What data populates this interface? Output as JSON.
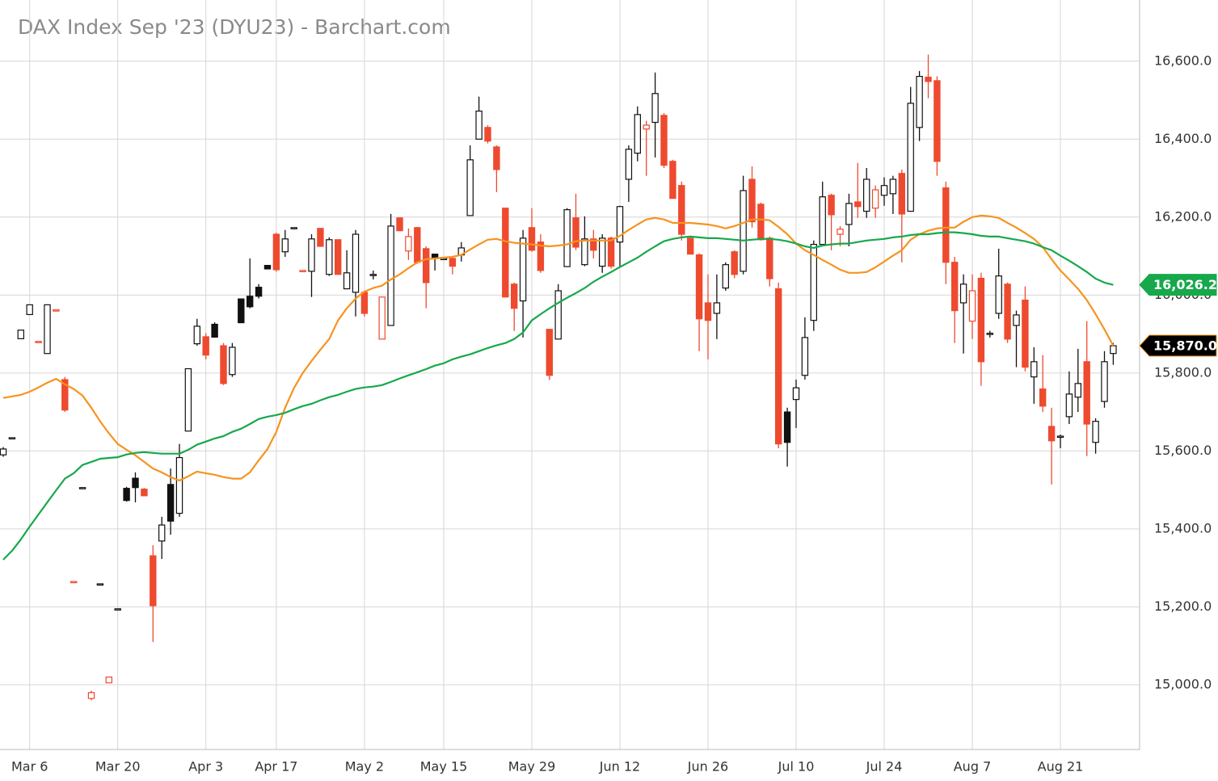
{
  "chart_data": {
    "type": "candlestick",
    "title": "DAX Index Sep '23 (DYU23) - Barchart.com",
    "categories": [
      null,
      null,
      null,
      "Mar 6",
      null,
      null,
      null,
      null,
      null,
      null,
      null,
      null,
      null,
      "Mar 20",
      null,
      null,
      null,
      null,
      null,
      null,
      null,
      null,
      null,
      "Apr 3",
      null,
      null,
      null,
      null,
      null,
      null,
      null,
      "Apr 17",
      null,
      null,
      null,
      null,
      null,
      null,
      null,
      null,
      null,
      "May 2",
      null,
      null,
      null,
      null,
      null,
      null,
      null,
      null,
      "May 15",
      null,
      null,
      null,
      null,
      null,
      null,
      null,
      null,
      null,
      "May 29",
      null,
      null,
      null,
      null,
      null,
      null,
      null,
      null,
      null,
      "Jun 12",
      null,
      null,
      null,
      null,
      null,
      null,
      null,
      null,
      null,
      "Jun 26",
      null,
      null,
      null,
      null,
      null,
      null,
      null,
      null,
      null,
      "Jul 10",
      null,
      null,
      null,
      null,
      null,
      null,
      null,
      null,
      null,
      "Jul 24",
      null,
      null,
      null,
      null,
      null,
      null,
      null,
      null,
      null,
      "Aug 7",
      null,
      null,
      null,
      null,
      null,
      null,
      null,
      null,
      null,
      "Aug 21",
      null,
      null,
      null,
      null,
      null,
      null
    ],
    "ohlc": {
      "open": [
        15590,
        15634,
        15888,
        15950,
        15881,
        15850,
        15962,
        15783,
        15265,
        15506,
        14965,
        15259,
        15005,
        15195,
        15504,
        15530,
        15502,
        15331,
        15369,
        15514,
        15440,
        15651,
        15875,
        15893,
        15925,
        15870,
        15796,
        15990,
        15997,
        16020,
        16076,
        16156,
        16111,
        16173,
        16063,
        16061,
        16171,
        16053,
        16142,
        16016,
        16007,
        16007,
        16053,
        15887,
        15922,
        16198,
        16113,
        16173,
        16119,
        16105,
        16094,
        16094,
        16103,
        16204,
        16400,
        16430,
        16380,
        16223,
        16028,
        15985,
        16173,
        16136,
        15912,
        15887,
        16073,
        16198,
        16078,
        16144,
        16074,
        16146,
        16136,
        16297,
        16364,
        16426,
        16443,
        16461,
        16343,
        16281,
        16146,
        16103,
        15980,
        15953,
        16018,
        16111,
        16061,
        16297,
        16233,
        16146,
        16016,
        15700,
        15732,
        15794,
        15935,
        16130,
        16256,
        16156,
        16181,
        16239,
        16215,
        16223,
        16256,
        16260,
        16312,
        16215,
        16430,
        16559,
        16550,
        16275,
        16084,
        15980,
        15933,
        16043,
        15902,
        15953,
        16028,
        15922,
        15987,
        15790,
        15759,
        15663,
        15638,
        15688,
        15738,
        15829,
        15622,
        15727,
        15850
      ],
      "high": [
        15610,
        15634,
        15910,
        15975,
        15881,
        15975,
        15962,
        15790,
        15265,
        15506,
        14985,
        15259,
        15020,
        15195,
        15508,
        15545,
        15505,
        15358,
        15431,
        15555,
        15618,
        15811,
        15939,
        15902,
        15930,
        15877,
        15877,
        15990,
        16094,
        16028,
        16076,
        16160,
        16167,
        16173,
        16063,
        16156,
        16171,
        16148,
        16142,
        16115,
        16167,
        16011,
        16063,
        15995,
        16208,
        16198,
        16171,
        16175,
        16125,
        16105,
        16094,
        16098,
        16136,
        16384,
        16509,
        16436,
        16384,
        16223,
        16032,
        16167,
        16223,
        16156,
        15912,
        16028,
        16223,
        16260,
        16202,
        16167,
        16156,
        16150,
        16229,
        16384,
        16484,
        16447,
        16571,
        16467,
        16347,
        16291,
        16150,
        16107,
        16053,
        16053,
        16084,
        16115,
        16306,
        16330,
        16237,
        16150,
        16032,
        15711,
        15783,
        15943,
        16140,
        16291,
        16260,
        16177,
        16260,
        16339,
        16326,
        16281,
        16302,
        16306,
        16322,
        16534,
        16575,
        16617,
        16561,
        16291,
        16098,
        16053,
        16053,
        16057,
        15908,
        16119,
        16032,
        15960,
        16022,
        15866,
        15846,
        15711,
        15642,
        15804,
        15862,
        15933,
        15684,
        15856,
        15877
      ],
      "low": [
        15585,
        15634,
        15888,
        15950,
        15881,
        15850,
        15962,
        15700,
        15265,
        15506,
        14960,
        15259,
        15005,
        15195,
        15470,
        15468,
        15485,
        15110,
        15323,
        15385,
        15431,
        15651,
        15870,
        15835,
        15892,
        15769,
        15790,
        15929,
        15966,
        15991,
        16067,
        16060,
        16098,
        16173,
        16063,
        15995,
        16125,
        16049,
        16053,
        16016,
        15945,
        15945,
        16040,
        15887,
        15922,
        16165,
        16090,
        16080,
        15966,
        16063,
        16094,
        16053,
        16086,
        16204,
        16400,
        16389,
        16264,
        15995,
        15908,
        15891,
        16111,
        16057,
        15782,
        15887,
        16073,
        16115,
        16074,
        16094,
        16057,
        16068,
        16074,
        16239,
        16343,
        16306,
        16353,
        16326,
        16248,
        16140,
        16105,
        15856,
        15835,
        15887,
        16011,
        16043,
        16053,
        16173,
        16140,
        16022,
        15607,
        15560,
        15659,
        15783,
        15908,
        16125,
        16115,
        16125,
        16125,
        16198,
        16198,
        16198,
        16229,
        16208,
        16084,
        16215,
        16395,
        16505,
        16306,
        16028,
        15877,
        15850,
        15887,
        15767,
        15891,
        15939,
        15877,
        15815,
        15804,
        15721,
        15700,
        15514,
        15607,
        15669,
        15700,
        15587,
        15593,
        15711,
        15821
      ],
      "close": [
        15605,
        15634,
        15910,
        15975,
        15881,
        15975,
        15962,
        15705,
        15265,
        15506,
        14980,
        15259,
        15020,
        15195,
        15473,
        15506,
        15485,
        15203,
        15410,
        15420,
        15583,
        15811,
        15920,
        15846,
        15892,
        15773,
        15866,
        15929,
        15970,
        15997,
        16067,
        16065,
        16144,
        16173,
        16063,
        16144,
        16125,
        16142,
        16053,
        16057,
        16156,
        15953,
        16053,
        15995,
        16177,
        16165,
        16150,
        16084,
        16032,
        16094,
        16094,
        16074,
        16121,
        16347,
        16472,
        16395,
        16322,
        15995,
        15966,
        16146,
        16115,
        16063,
        15794,
        16011,
        16219,
        16123,
        16144,
        16115,
        16146,
        16074,
        16227,
        16374,
        16463,
        16436,
        16517,
        16333,
        16248,
        16156,
        16105,
        15939,
        15935,
        15980,
        16078,
        16053,
        16268,
        16188,
        16142,
        16042,
        15618,
        15622,
        15762,
        15891,
        16130,
        16252,
        16206,
        16169,
        16235,
        16227,
        16297,
        16270,
        16281,
        16297,
        16208,
        16492,
        16561,
        16548,
        16343,
        16084,
        15960,
        16028,
        16011,
        15829,
        15902,
        16049,
        15887,
        15949,
        15815,
        15829,
        15715,
        15626,
        15638,
        15746,
        15773,
        15669,
        15676,
        15829,
        15870
      ]
    },
    "up_color": "#111111",
    "down_color": "#ee4a2f",
    "lines": [
      {
        "color": "#f7931e",
        "values": [
          15736,
          15740,
          15744,
          15752,
          15763,
          15775,
          15785,
          15771,
          15759,
          15742,
          15711,
          15676,
          15645,
          15618,
          15603,
          15589,
          15572,
          15555,
          15545,
          15533,
          15524,
          15535,
          15547,
          15543,
          15539,
          15533,
          15529,
          15529,
          15545,
          15576,
          15605,
          15649,
          15711,
          15761,
          15800,
          15831,
          15860,
          15887,
          15935,
          15966,
          15991,
          16009,
          16018,
          16024,
          16040,
          16053,
          16069,
          16084,
          16092,
          16094,
          16096,
          16098,
          16103,
          16117,
          16130,
          16142,
          16144,
          16138,
          16134,
          16132,
          16130,
          16127,
          16125,
          16127,
          16130,
          16138,
          16140,
          16140,
          16140,
          16140,
          16152,
          16167,
          16181,
          16194,
          16198,
          16194,
          16185,
          16185,
          16185,
          16183,
          16181,
          16177,
          16171,
          16177,
          16185,
          16194,
          16194,
          16192,
          16175,
          16156,
          16132,
          16115,
          16103,
          16090,
          16078,
          16065,
          16057,
          16057,
          16059,
          16071,
          16086,
          16101,
          16115,
          16142,
          16156,
          16165,
          16171,
          16173,
          16173,
          16188,
          16200,
          16204,
          16202,
          16198,
          16185,
          16173,
          16159,
          16144,
          16123,
          16092,
          16063,
          16040,
          16016,
          15987,
          15951,
          15912,
          15870
        ]
      },
      {
        "color": "#17a84b",
        "values": [
          15321,
          15344,
          15373,
          15406,
          15437,
          15468,
          15499,
          15529,
          15543,
          15564,
          15572,
          15580,
          15582,
          15584,
          15591,
          15595,
          15597,
          15595,
          15593,
          15593,
          15593,
          15603,
          15616,
          15624,
          15632,
          15638,
          15649,
          15657,
          15669,
          15682,
          15688,
          15692,
          15698,
          15707,
          15715,
          15721,
          15730,
          15738,
          15744,
          15752,
          15759,
          15763,
          15765,
          15769,
          15777,
          15786,
          15794,
          15802,
          15810,
          15819,
          15825,
          15835,
          15842,
          15848,
          15856,
          15864,
          15871,
          15877,
          15887,
          15904,
          15935,
          15951,
          15966,
          15980,
          15993,
          16005,
          16018,
          16034,
          16047,
          16059,
          16072,
          16084,
          16096,
          16111,
          16125,
          16138,
          16144,
          16148,
          16150,
          16148,
          16146,
          16146,
          16144,
          16142,
          16140,
          16142,
          16144,
          16144,
          16142,
          16138,
          16132,
          16125,
          16121,
          16127,
          16130,
          16132,
          16132,
          16136,
          16140,
          16142,
          16144,
          16148,
          16150,
          16154,
          16156,
          16156,
          16159,
          16161,
          16161,
          16159,
          16156,
          16152,
          16150,
          16150,
          16146,
          16142,
          16138,
          16132,
          16123,
          16115,
          16101,
          16088,
          16074,
          16059,
          16042,
          16032,
          16026.2
        ]
      }
    ],
    "price_labels": [
      {
        "value": 16026.2,
        "label": "16,026.2",
        "color": "#17a84b"
      },
      {
        "value": 15870,
        "label": "15,870.0",
        "color": "#000000"
      }
    ],
    "ylim": [
      14834,
      16757
    ],
    "yticks": [
      {
        "value": 15000,
        "label": "15,000.0"
      },
      {
        "value": 15200,
        "label": "15,200.0"
      },
      {
        "value": 15400,
        "label": "15,400.0"
      },
      {
        "value": 15600,
        "label": "15,600.0"
      },
      {
        "value": 15800,
        "label": "15,800.0"
      },
      {
        "value": 16000,
        "label": "16,000.0"
      },
      {
        "value": 16200,
        "label": "16,200.0"
      },
      {
        "value": 16400,
        "label": "16,400.0"
      },
      {
        "value": 16600,
        "label": "16,600.0"
      }
    ],
    "grid": true
  }
}
